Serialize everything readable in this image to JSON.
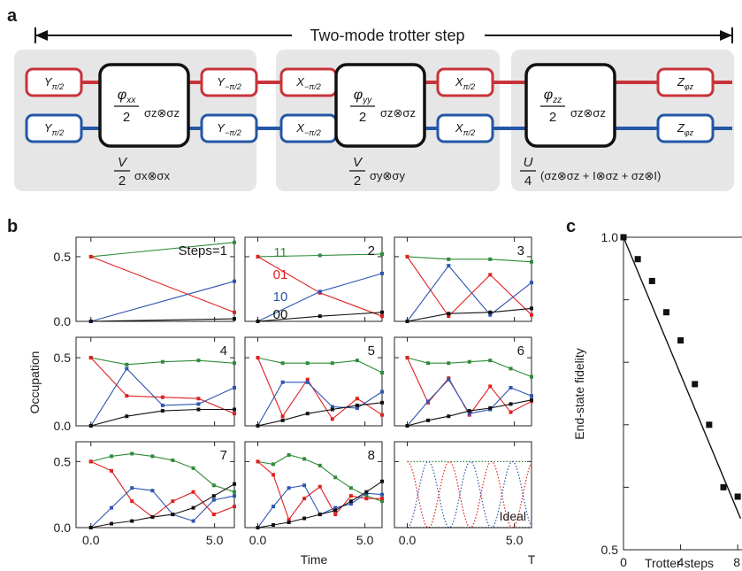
{
  "panel_letters": {
    "a": "a",
    "b": "b",
    "c": "c"
  },
  "circuit": {
    "header": "Two-mode trotter step",
    "blocks": [
      {
        "top_left_gate": "Y",
        "top_left_sub": "π/2",
        "bottom_left_gate": "Y",
        "bottom_left_sub": "π/2",
        "center_num": "φ",
        "center_num_sub": "xx",
        "center_den": "2",
        "center_op": "σz⊗σz",
        "top_right_gate": "Y",
        "top_right_sub": "−π/2",
        "bottom_right_gate": "Y",
        "bottom_right_sub": "−π/2",
        "caption_num": "V",
        "caption_den": "2",
        "caption_rest": "σx⊗σx"
      },
      {
        "top_left_gate": "X",
        "top_left_sub": "−π/2",
        "bottom_left_gate": "X",
        "bottom_left_sub": "−π/2",
        "center_num": "φ",
        "center_num_sub": "yy",
        "center_den": "2",
        "center_op": "σz⊗σz",
        "top_right_gate": "X",
        "top_right_sub": "π/2",
        "bottom_right_gate": "X",
        "bottom_right_sub": "π/2",
        "caption_num": "V",
        "caption_den": "2",
        "caption_rest": "σy⊗σy"
      },
      {
        "center_num": "φ",
        "center_num_sub": "zz",
        "center_den": "2",
        "center_op": "σz⊗σz",
        "top_right_gate": "Z",
        "top_right_sub": "φz",
        "bottom_right_gate": "Z",
        "bottom_right_sub": "φz",
        "caption_num": "U",
        "caption_den": "4",
        "caption_rest": "(σz⊗σz + I⊗σz + σz⊗I)"
      }
    ],
    "wire_colors": {
      "top": "#c8333a",
      "bottom": "#2457a6"
    }
  },
  "occupation": {
    "y_axis_title": "Occupation",
    "x_axis_title": "Time",
    "x_axis_extra_label": "T",
    "y_ticks": [
      "0.0",
      "0.5"
    ],
    "x_ticks": [
      "0.0",
      "5.0"
    ],
    "legend_labels": [
      "11",
      "01",
      "10",
      "00"
    ],
    "series_colors": {
      "11": "#2e8b3a",
      "01": "#e02020",
      "10": "#2f55b0",
      "00": "#111111"
    },
    "ideal_label": "Ideal"
  },
  "chart_data": [
    {
      "type": "line",
      "panel": "Steps=1",
      "label": "Steps=1",
      "x": [
        0,
        5.8
      ],
      "series": [
        {
          "name": "11",
          "values": [
            0.5,
            0.61
          ]
        },
        {
          "name": "01",
          "values": [
            0.5,
            0.07
          ]
        },
        {
          "name": "10",
          "values": [
            0.0,
            0.31
          ]
        },
        {
          "name": "00",
          "values": [
            0.0,
            0.02
          ]
        }
      ],
      "xlim": [
        -0.6,
        5.8
      ],
      "ylim": [
        0,
        0.65
      ]
    },
    {
      "type": "line",
      "panel": "2",
      "label": "2",
      "x": [
        0,
        2.9,
        5.8
      ],
      "series": [
        {
          "name": "11",
          "values": [
            0.5,
            0.51,
            0.52
          ]
        },
        {
          "name": "01",
          "values": [
            0.5,
            0.22,
            0.04
          ]
        },
        {
          "name": "10",
          "values": [
            0.0,
            0.23,
            0.37
          ]
        },
        {
          "name": "00",
          "values": [
            0.0,
            0.04,
            0.07
          ]
        }
      ],
      "xlim": [
        -0.6,
        5.8
      ],
      "ylim": [
        0,
        0.65
      ]
    },
    {
      "type": "line",
      "panel": "3",
      "label": "3",
      "x": [
        0,
        1.93,
        3.87,
        5.8
      ],
      "series": [
        {
          "name": "11",
          "values": [
            0.5,
            0.48,
            0.48,
            0.46
          ]
        },
        {
          "name": "01",
          "values": [
            0.5,
            0.04,
            0.36,
            0.05
          ]
        },
        {
          "name": "10",
          "values": [
            0.0,
            0.43,
            0.05,
            0.3
          ]
        },
        {
          "name": "00",
          "values": [
            0.0,
            0.06,
            0.07,
            0.1
          ]
        }
      ],
      "xlim": [
        -0.6,
        5.8
      ],
      "ylim": [
        0,
        0.65
      ]
    },
    {
      "type": "line",
      "panel": "4",
      "label": "4",
      "x": [
        0,
        1.45,
        2.9,
        4.35,
        5.8
      ],
      "series": [
        {
          "name": "11",
          "values": [
            0.5,
            0.45,
            0.47,
            0.48,
            0.46
          ]
        },
        {
          "name": "01",
          "values": [
            0.5,
            0.22,
            0.21,
            0.2,
            0.09
          ]
        },
        {
          "name": "10",
          "values": [
            0.0,
            0.42,
            0.15,
            0.16,
            0.28
          ]
        },
        {
          "name": "00",
          "values": [
            0.0,
            0.07,
            0.11,
            0.12,
            0.12
          ]
        }
      ],
      "xlim": [
        -0.6,
        5.8
      ],
      "ylim": [
        0,
        0.65
      ]
    },
    {
      "type": "line",
      "panel": "5",
      "label": "5",
      "x": [
        0,
        1.16,
        2.32,
        3.48,
        4.64,
        5.8
      ],
      "series": [
        {
          "name": "11",
          "values": [
            0.5,
            0.46,
            0.46,
            0.46,
            0.48,
            0.39
          ]
        },
        {
          "name": "01",
          "values": [
            0.5,
            0.07,
            0.34,
            0.05,
            0.2,
            0.08
          ]
        },
        {
          "name": "10",
          "values": [
            0.0,
            0.32,
            0.32,
            0.14,
            0.13,
            0.25
          ]
        },
        {
          "name": "00",
          "values": [
            0.0,
            0.04,
            0.09,
            0.12,
            0.15,
            0.17
          ]
        }
      ],
      "xlim": [
        -0.6,
        5.8
      ],
      "ylim": [
        0,
        0.65
      ]
    },
    {
      "type": "line",
      "panel": "6",
      "label": "6",
      "x": [
        0,
        0.97,
        1.93,
        2.9,
        3.87,
        4.83,
        5.8
      ],
      "series": [
        {
          "name": "11",
          "values": [
            0.5,
            0.46,
            0.46,
            0.47,
            0.48,
            0.42,
            0.36
          ]
        },
        {
          "name": "01",
          "values": [
            0.5,
            0.17,
            0.35,
            0.08,
            0.29,
            0.1,
            0.18
          ]
        },
        {
          "name": "10",
          "values": [
            0.0,
            0.18,
            0.34,
            0.09,
            0.12,
            0.28,
            0.22
          ]
        },
        {
          "name": "00",
          "values": [
            0.0,
            0.04,
            0.07,
            0.11,
            0.13,
            0.16,
            0.19
          ]
        }
      ],
      "xlim": [
        -0.6,
        5.8
      ],
      "ylim": [
        0,
        0.65
      ]
    },
    {
      "type": "line",
      "panel": "7",
      "label": "7",
      "x": [
        0,
        0.83,
        1.66,
        2.49,
        3.31,
        4.14,
        4.97,
        5.8
      ],
      "series": [
        {
          "name": "11",
          "values": [
            0.5,
            0.54,
            0.56,
            0.54,
            0.51,
            0.45,
            0.32,
            0.27
          ]
        },
        {
          "name": "01",
          "values": [
            0.5,
            0.43,
            0.2,
            0.08,
            0.2,
            0.27,
            0.1,
            0.16
          ]
        },
        {
          "name": "10",
          "values": [
            0.0,
            0.15,
            0.3,
            0.28,
            0.1,
            0.05,
            0.21,
            0.24
          ]
        },
        {
          "name": "00",
          "values": [
            0.0,
            0.03,
            0.05,
            0.08,
            0.1,
            0.15,
            0.24,
            0.33
          ]
        }
      ],
      "xlim": [
        -0.6,
        5.8
      ],
      "ylim": [
        0,
        0.65
      ]
    },
    {
      "type": "line",
      "panel": "8",
      "label": "8",
      "x": [
        0,
        0.72,
        1.45,
        2.17,
        2.9,
        3.62,
        4.35,
        5.07,
        5.8
      ],
      "series": [
        {
          "name": "11",
          "values": [
            0.5,
            0.48,
            0.55,
            0.52,
            0.47,
            0.38,
            0.3,
            0.24,
            0.2
          ]
        },
        {
          "name": "01",
          "values": [
            0.5,
            0.4,
            0.06,
            0.22,
            0.31,
            0.1,
            0.24,
            0.22,
            0.22
          ]
        },
        {
          "name": "10",
          "values": [
            0.0,
            0.16,
            0.3,
            0.32,
            0.1,
            0.15,
            0.18,
            0.26,
            0.25
          ]
        },
        {
          "name": "00",
          "values": [
            0.0,
            0.02,
            0.04,
            0.07,
            0.1,
            0.13,
            0.2,
            0.27,
            0.35
          ]
        }
      ],
      "xlim": [
        -0.6,
        5.8
      ],
      "ylim": [
        0,
        0.65
      ]
    },
    {
      "type": "line",
      "panel": "Ideal",
      "label": "Ideal",
      "style": "dotted",
      "omega": 1.6,
      "x_range": [
        0,
        5.8
      ],
      "series": [
        {
          "name": "11",
          "formula": "constant 0.5"
        },
        {
          "name": "01",
          "formula": "0.5*cos^2(1.6 t)"
        },
        {
          "name": "10",
          "formula": "0.5*sin^2(1.6 t)"
        },
        {
          "name": "00",
          "formula": "constant 0.0"
        }
      ],
      "xlim": [
        -0.6,
        5.8
      ],
      "ylim": [
        0,
        0.65
      ]
    },
    {
      "type": "scatter",
      "panel": "c",
      "xlabel": "Trotter steps",
      "ylabel": "End-state fidelity",
      "x_ticks": [
        "0",
        "4",
        "8"
      ],
      "y_ticks": [
        "0.5",
        "1.0"
      ],
      "points": [
        {
          "x": 0,
          "y": 1.0
        },
        {
          "x": 1,
          "y": 0.965
        },
        {
          "x": 2,
          "y": 0.93
        },
        {
          "x": 3,
          "y": 0.88
        },
        {
          "x": 4,
          "y": 0.835
        },
        {
          "x": 5,
          "y": 0.765
        },
        {
          "x": 6,
          "y": 0.7
        },
        {
          "x": 7,
          "y": 0.6
        },
        {
          "x": 8,
          "y": 0.585
        }
      ],
      "fit_line": {
        "x": [
          0,
          8.2
        ],
        "y": [
          1.0,
          0.55
        ]
      },
      "xlim": [
        0,
        8.3
      ],
      "ylim": [
        0.5,
        1.0
      ]
    }
  ]
}
